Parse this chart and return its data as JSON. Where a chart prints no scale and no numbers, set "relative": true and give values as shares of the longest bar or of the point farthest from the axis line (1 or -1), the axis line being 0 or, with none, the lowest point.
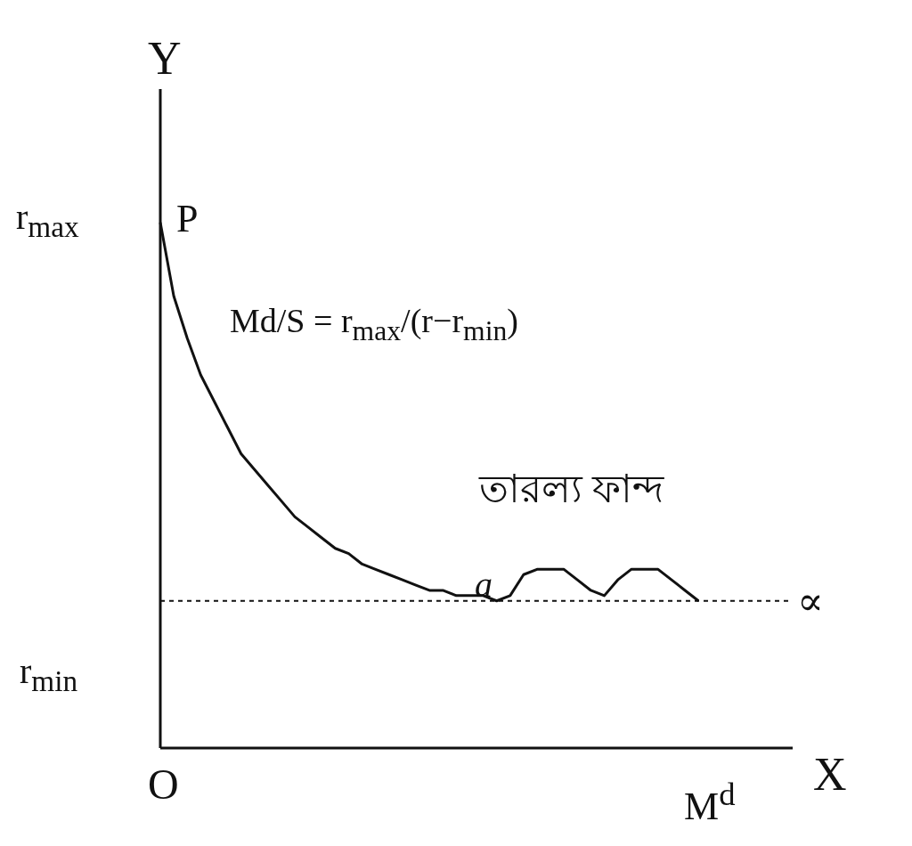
{
  "chart_data": {
    "type": "line",
    "relative": true,
    "xlabel": "X",
    "ylabel": "Y",
    "categories": [
      null,
      null,
      null,
      null,
      null,
      null,
      null,
      null,
      null,
      null,
      null,
      null,
      null,
      null,
      null,
      null,
      null,
      null,
      null,
      null,
      null,
      null,
      null,
      null,
      null,
      null,
      null,
      null,
      null,
      null,
      null,
      null,
      null,
      null,
      null,
      null,
      null,
      null,
      null,
      null,
      null,
      null,
      null,
      null,
      null,
      null,
      null,
      null
    ],
    "series": [
      {
        "color": "#111111",
        "values": [
          1,
          0.86,
          0.78,
          0.71,
          0.66,
          0.61,
          0.56,
          0.53,
          0.5,
          0.47,
          0.44,
          0.42,
          0.4,
          0.38,
          0.37,
          0.35,
          0.34,
          0.33,
          0.32,
          0.31,
          0.3,
          0.3,
          0.29,
          0.29,
          0.29,
          0.28,
          0.29,
          0.33,
          0.34,
          0.34,
          0.34,
          0.32,
          0.3,
          0.29,
          0.32,
          0.34,
          0.34,
          0.34,
          0.32,
          0.3,
          0.28,
          null,
          null,
          null,
          null,
          null,
          null,
          null
        ]
      }
    ],
    "marker": "none",
    "ref_lines": [
      {
        "axis": "y",
        "value": 0.28,
        "label": "∝",
        "color": "#111111",
        "line_style": "dashed"
      }
    ],
    "annotations": [
      "P",
      "Md/S = r$_{max}$/(r−r$_{min}$)",
      "তারল্য ফান্দ",
      "a",
      "O",
      "M$^{d}$",
      "r$_{max}$",
      "r$_{min}$"
    ]
  }
}
